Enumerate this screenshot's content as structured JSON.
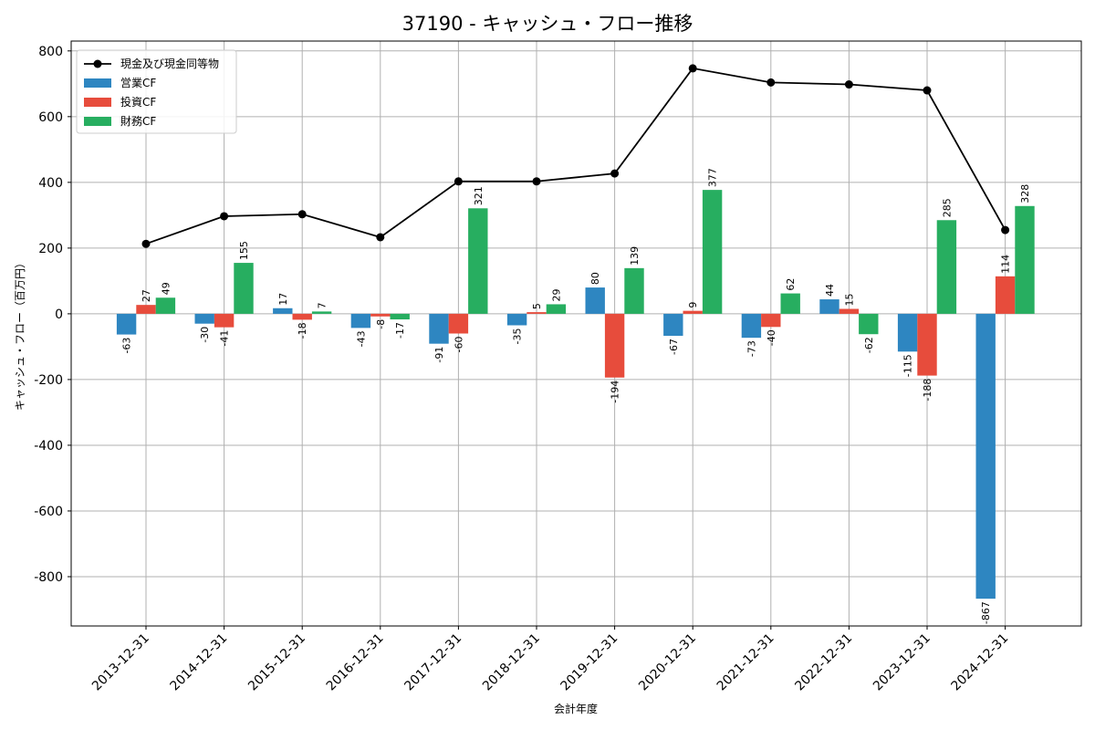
{
  "chart_data": {
    "type": "bar",
    "title": "37190 - キャッシュ・フロー推移",
    "xlabel": "会計年度",
    "ylabel": "キャッシュ・フロー（百万円）",
    "ylim": [
      -950,
      830
    ],
    "yticks": [
      800,
      600,
      400,
      200,
      0,
      -200,
      -400,
      -600,
      -800
    ],
    "grid": true,
    "legend_position": "top-left",
    "categories": [
      "2013-12-31",
      "2014-12-31",
      "2015-12-31",
      "2016-12-31",
      "2017-12-31",
      "2018-12-31",
      "2019-12-31",
      "2020-12-31",
      "2021-12-31",
      "2022-12-31",
      "2023-12-31",
      "2024-12-31"
    ],
    "series": [
      {
        "name": "営業CF",
        "type": "bar",
        "color": "#2e86c1",
        "values": [
          -63,
          -30,
          17,
          -43,
          -91,
          -35,
          80,
          -67,
          -73,
          44,
          -115,
          -867
        ]
      },
      {
        "name": "投資CF",
        "type": "bar",
        "color": "#e74c3c",
        "values": [
          27,
          -41,
          -18,
          -8,
          -60,
          5,
          -194,
          9,
          -40,
          15,
          -188,
          114
        ]
      },
      {
        "name": "財務CF",
        "type": "bar",
        "color": "#27ae60",
        "values": [
          49,
          155,
          7,
          -17,
          321,
          29,
          139,
          377,
          62,
          -62,
          285,
          328
        ]
      },
      {
        "name": "現金及び現金同等物",
        "type": "line",
        "color": "#000000",
        "values": [
          213,
          297,
          303,
          233,
          403,
          403,
          427,
          747,
          704,
          698,
          680,
          255
        ]
      }
    ]
  }
}
